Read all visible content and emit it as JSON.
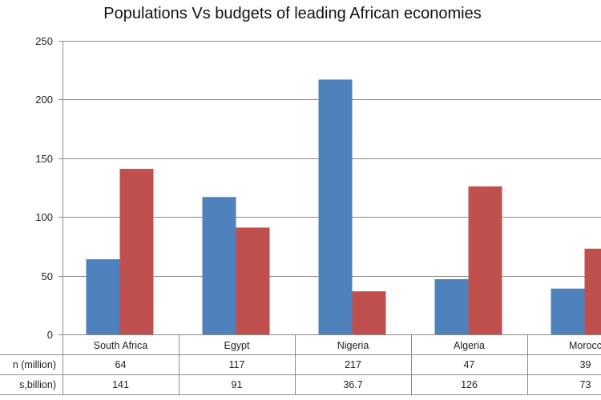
{
  "chart_data": {
    "type": "bar",
    "title": "Populations Vs budgets of leading African economies",
    "xlabel": "",
    "ylabel": "",
    "ylim": [
      0,
      250
    ],
    "yticks": [
      0,
      50,
      100,
      150,
      200,
      250
    ],
    "grid": true,
    "legend": "data-table-below",
    "categories": [
      "South Africa",
      "Egypt",
      "Nigeria",
      "Algeria",
      "Morocco"
    ],
    "category_labels_visible": [
      "South Africa",
      "Egypt",
      "Nigeria",
      "Algeria",
      "Morocc"
    ],
    "series": [
      {
        "name": "Population (million)",
        "visible_label": "n (million)",
        "color": "#4F81BD",
        "values": [
          64,
          117,
          217,
          47,
          39
        ],
        "table_values": [
          "64",
          "117",
          "217",
          "47",
          "39"
        ]
      },
      {
        "name": "Budget (US$,billion)",
        "visible_label": "s,billion)",
        "color": "#C0504D",
        "values": [
          141,
          91,
          36.7,
          126,
          73
        ],
        "table_values": [
          "141",
          "91",
          "36.7",
          "126",
          "73"
        ]
      }
    ]
  }
}
